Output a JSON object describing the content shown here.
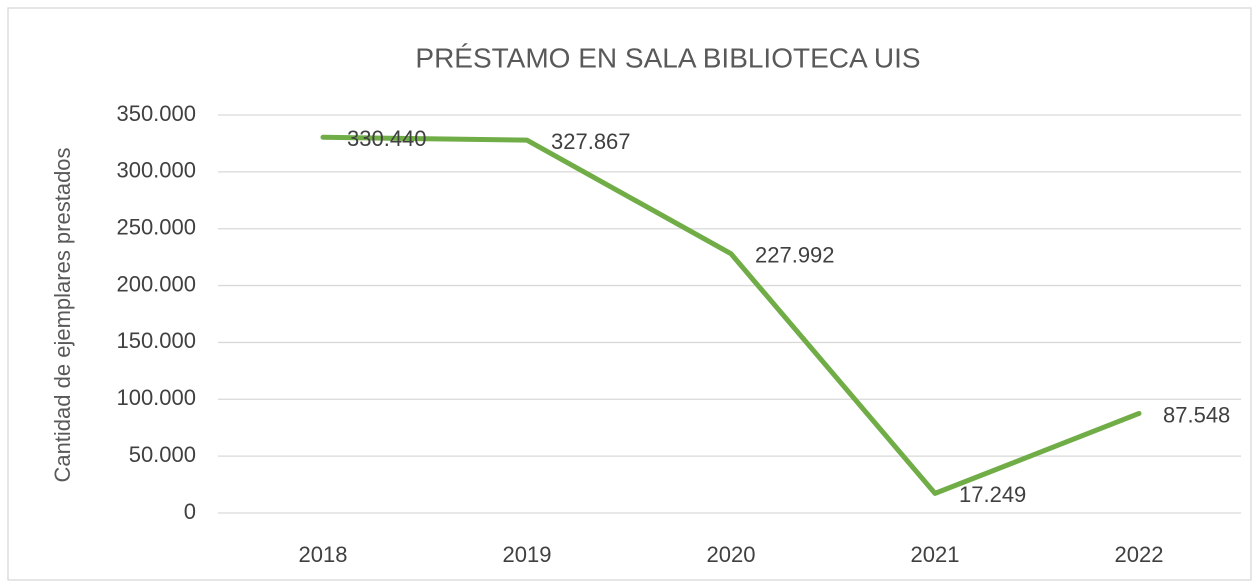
{
  "chart_data": {
    "type": "line",
    "title": "PRÉSTAMO EN SALA BIBLIOTECA UIS",
    "y_label": "Cantidad de ejemplares prestados",
    "categories": [
      "2018",
      "2019",
      "2020",
      "2021",
      "2022"
    ],
    "series": [
      {
        "name": "Préstamo en sala",
        "color": "#70ad47",
        "values": [
          330440,
          327867,
          227992,
          17249,
          87548
        ],
        "value_labels": [
          "330.440",
          "327.867",
          "227.992",
          "17.249",
          "87.548"
        ]
      }
    ],
    "ylim": [
      0,
      350000
    ],
    "yticks": [
      0,
      {
        "value": 50000,
        "label": "50.000"
      },
      {
        "value": 100000,
        "label": "100.000"
      },
      {
        "value": 150000,
        "label": "150.000"
      },
      {
        "value": 200000,
        "label": "200.000"
      },
      {
        "value": 250000,
        "label": "250.000"
      },
      {
        "value": 300000,
        "label": "300.000"
      },
      {
        "value": 350000,
        "label": "350.000"
      }
    ],
    "grid": true
  }
}
